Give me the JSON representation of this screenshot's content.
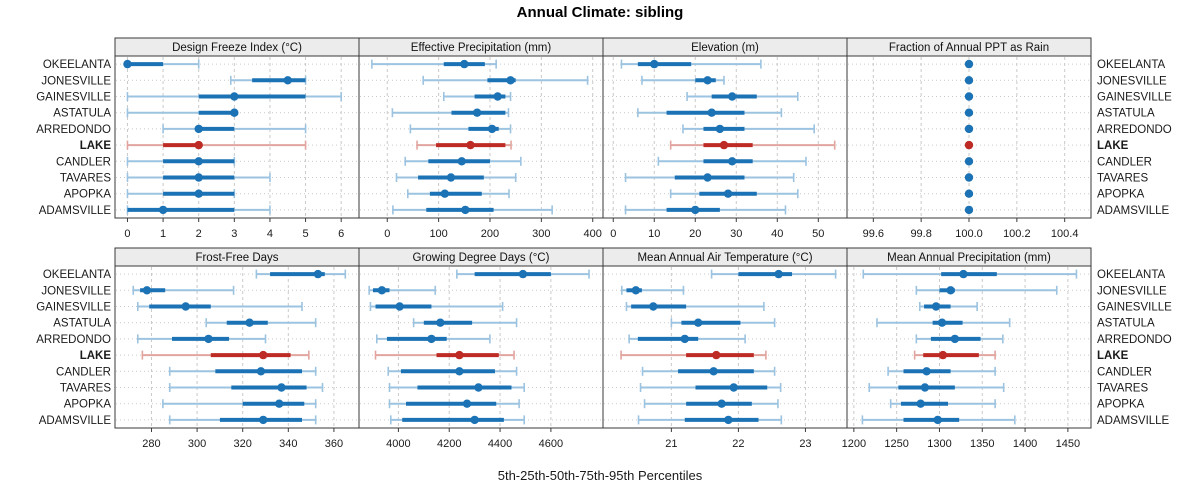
{
  "title": "Annual Climate: sibling",
  "caption": "5th-25th-50th-75th-95th Percentiles",
  "highlight_station": "LAKE",
  "colors": {
    "series": "#1b72b5",
    "series_light": "#9cc3e0",
    "highlight": "#be2b25",
    "highlight_light": "#e2a49e",
    "grid": "#c9c9c9",
    "row_guide": "#c9c9c9",
    "panel_border": "#3a3a3a",
    "header_bg": "#ececec",
    "tick_text": "#1a1a1a",
    "label_text": "#1a1a1a"
  },
  "chart_data": {
    "type": "scatter",
    "variant": "percentile-range-dotplot",
    "percentiles": [
      5,
      25,
      50,
      75,
      95
    ],
    "legend_note": "5th-25th-50th-75th-95th Percentiles",
    "grid": "on",
    "categories": [
      "OKEELANTA",
      "JONESVILLE",
      "GAINESVILLE",
      "ASTATULA",
      "ARREDONDO",
      "LAKE",
      "CANDLER",
      "TAVARES",
      "APOPKA",
      "ADAMSVILLE"
    ],
    "panels": [
      {
        "title": "Design Freeze Index (°C)",
        "row": 0,
        "col": 0,
        "domain": [
          -0.35,
          6.5
        ],
        "ticks": [
          0,
          1,
          2,
          3,
          4,
          5,
          6
        ],
        "tick_labels": [
          "0",
          "1",
          "2",
          "3",
          "4",
          "5",
          "6"
        ],
        "values": [
          [
            0,
            0,
            0,
            1,
            2
          ],
          [
            2.9,
            3.5,
            4.5,
            5,
            5
          ],
          [
            0,
            2,
            3,
            5,
            6
          ],
          [
            0,
            2,
            3,
            3,
            3
          ],
          [
            1,
            2,
            2,
            3,
            5
          ],
          [
            0,
            1,
            2,
            2,
            5
          ],
          [
            0,
            1,
            2,
            3,
            3
          ],
          [
            0,
            1,
            2,
            3,
            4
          ],
          [
            0,
            1,
            2,
            3,
            3
          ],
          [
            0,
            0,
            1,
            3,
            4
          ]
        ]
      },
      {
        "title": "Effective Precipitation (mm)",
        "row": 0,
        "col": 1,
        "domain": [
          -55,
          420
        ],
        "ticks": [
          0,
          100,
          200,
          300,
          400
        ],
        "tick_labels": [
          "0",
          "100",
          "200",
          "300",
          "400"
        ],
        "values": [
          [
            -30,
            110,
            150,
            190,
            212
          ],
          [
            70,
            195,
            240,
            250,
            390
          ],
          [
            110,
            170,
            215,
            230,
            240
          ],
          [
            10,
            125,
            175,
            230,
            236
          ],
          [
            45,
            158,
            204,
            217,
            240
          ],
          [
            58,
            95,
            162,
            230,
            241
          ],
          [
            35,
            80,
            145,
            200,
            260
          ],
          [
            18,
            60,
            124,
            188,
            250
          ],
          [
            40,
            83,
            112,
            184,
            237
          ],
          [
            11,
            76,
            152,
            207,
            321
          ]
        ]
      },
      {
        "title": "Elevation (m)",
        "row": 0,
        "col": 2,
        "domain": [
          -2.5,
          57
        ],
        "ticks": [
          0,
          10,
          20,
          30,
          40,
          50
        ],
        "tick_labels": [
          "0",
          "10",
          "20",
          "30",
          "40",
          "50"
        ],
        "values": [
          [
            2,
            6,
            10,
            19,
            36
          ],
          [
            7,
            20,
            23,
            25,
            27
          ],
          [
            18,
            24,
            29,
            35,
            45
          ],
          [
            6,
            13,
            24,
            32,
            41
          ],
          [
            17,
            22,
            26,
            32,
            49
          ],
          [
            14,
            22,
            27,
            34,
            54
          ],
          [
            11,
            22,
            29,
            34,
            47
          ],
          [
            3,
            15,
            23,
            32,
            44
          ],
          [
            14,
            21,
            28,
            35,
            45
          ],
          [
            3,
            13,
            20,
            26,
            42
          ]
        ]
      },
      {
        "title": "Fraction of Annual PPT as Rain",
        "row": 0,
        "col": 3,
        "domain": [
          99.49,
          100.51
        ],
        "ticks": [
          99.6,
          99.8,
          100.0,
          100.2,
          100.4
        ],
        "tick_labels": [
          "99.6",
          "99.8",
          "100.0",
          "100.2",
          "100.4"
        ],
        "values": [
          [
            100,
            100,
            100,
            100,
            100
          ],
          [
            100,
            100,
            100,
            100,
            100
          ],
          [
            100,
            100,
            100,
            100,
            100
          ],
          [
            100,
            100,
            100,
            100,
            100
          ],
          [
            100,
            100,
            100,
            100,
            100
          ],
          [
            100,
            100,
            100,
            100,
            100
          ],
          [
            100,
            100,
            100,
            100,
            100
          ],
          [
            100,
            100,
            100,
            100,
            100
          ],
          [
            100,
            100,
            100,
            100,
            100
          ],
          [
            100,
            100,
            100,
            100,
            100
          ]
        ]
      },
      {
        "title": "Frost-Free Days",
        "row": 1,
        "col": 0,
        "domain": [
          264,
          371
        ],
        "ticks": [
          280,
          300,
          320,
          340,
          360
        ],
        "tick_labels": [
          "280",
          "300",
          "320",
          "340",
          "360"
        ],
        "values": [
          [
            326,
            332,
            353,
            356,
            365
          ],
          [
            272,
            275,
            278,
            286,
            316
          ],
          [
            274,
            279,
            295,
            306,
            346
          ],
          [
            304,
            313,
            323,
            331,
            352
          ],
          [
            274,
            289,
            305,
            314,
            330
          ],
          [
            276,
            306,
            329,
            341,
            349
          ],
          [
            288,
            308,
            328,
            346,
            352
          ],
          [
            288,
            315,
            337,
            348,
            355
          ],
          [
            285,
            320,
            336,
            347,
            352
          ],
          [
            288,
            310,
            329,
            346,
            352
          ]
        ]
      },
      {
        "title": "Growing Degree Days (°C)",
        "row": 1,
        "col": 1,
        "domain": [
          3845,
          4805
        ],
        "ticks": [
          4000,
          4200,
          4400,
          4600
        ],
        "tick_labels": [
          "4000",
          "4200",
          "4400",
          "4600"
        ],
        "values": [
          [
            4230,
            4300,
            4490,
            4600,
            4750
          ],
          [
            3885,
            3900,
            3935,
            3965,
            4145
          ],
          [
            3890,
            3910,
            4005,
            4130,
            4410
          ],
          [
            4060,
            4100,
            4165,
            4290,
            4465
          ],
          [
            3915,
            3955,
            4130,
            4190,
            4360
          ],
          [
            3910,
            4150,
            4240,
            4395,
            4455
          ],
          [
            3960,
            4010,
            4240,
            4380,
            4465
          ],
          [
            3965,
            4075,
            4315,
            4445,
            4495
          ],
          [
            3965,
            4030,
            4270,
            4385,
            4475
          ],
          [
            3970,
            4015,
            4300,
            4415,
            4495
          ]
        ]
      },
      {
        "title": "Mean Annual Air Temperature (°C)",
        "row": 1,
        "col": 2,
        "domain": [
          19.98,
          23.62
        ],
        "ticks": [
          21,
          22,
          23
        ],
        "tick_labels": [
          "21",
          "22",
          "23"
        ],
        "values": [
          [
            21.6,
            22.0,
            22.6,
            22.8,
            23.45
          ],
          [
            20.26,
            20.33,
            20.47,
            20.56,
            21.18
          ],
          [
            20.33,
            20.4,
            20.73,
            21.22,
            22.38
          ],
          [
            21.0,
            21.15,
            21.4,
            22.03,
            22.54
          ],
          [
            20.37,
            20.5,
            21.2,
            21.4,
            22.1
          ],
          [
            20.25,
            21.22,
            21.67,
            22.23,
            22.41
          ],
          [
            20.57,
            21.1,
            21.63,
            22.23,
            22.54
          ],
          [
            20.54,
            21.36,
            21.93,
            22.43,
            22.63
          ],
          [
            20.6,
            21.22,
            21.75,
            22.2,
            22.59
          ],
          [
            20.51,
            21.2,
            21.85,
            22.3,
            22.64
          ]
        ]
      },
      {
        "title": "Mean Annual Precipitation (mm)",
        "row": 1,
        "col": 3,
        "domain": [
          1192,
          1477
        ],
        "ticks": [
          1200,
          1250,
          1300,
          1350,
          1400,
          1450
        ],
        "tick_labels": [
          "1200",
          "1250",
          "1300",
          "1350",
          "1400",
          "1450"
        ],
        "values": [
          [
            1211,
            1302,
            1328,
            1367,
            1460
          ],
          [
            1273,
            1300,
            1313,
            1318,
            1437
          ],
          [
            1277,
            1282,
            1296,
            1313,
            1344
          ],
          [
            1227,
            1292,
            1303,
            1327,
            1382
          ],
          [
            1273,
            1290,
            1318,
            1348,
            1374
          ],
          [
            1271,
            1281,
            1304,
            1346,
            1365
          ],
          [
            1240,
            1258,
            1285,
            1313,
            1365
          ],
          [
            1218,
            1252,
            1283,
            1318,
            1375
          ],
          [
            1243,
            1255,
            1278,
            1310,
            1365
          ],
          [
            1210,
            1258,
            1298,
            1323,
            1388
          ]
        ]
      }
    ]
  }
}
